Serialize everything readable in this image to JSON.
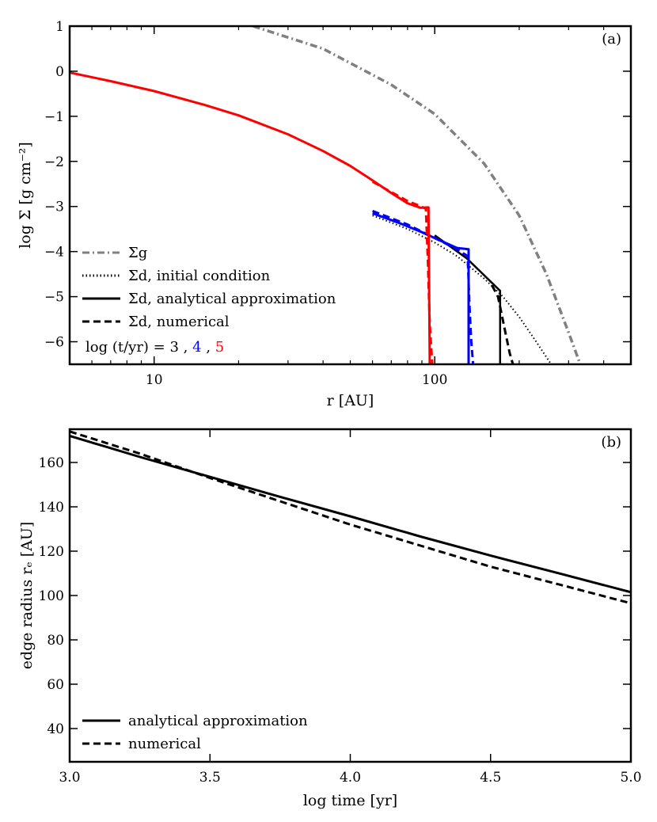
{
  "chart_data": [
    {
      "type": "line",
      "panel_label": "(a)",
      "xlabel": "r [AU]",
      "ylabel": "log Σ [g cm⁻²]",
      "xscale": "log",
      "xlim": [
        5,
        500
      ],
      "ylim": [
        -6.5,
        1
      ],
      "xticks": [
        10,
        100
      ],
      "xtick_labels": [
        "10",
        "100"
      ],
      "yticks": [
        1,
        0,
        -1,
        -2,
        -3,
        -4,
        -5,
        -6
      ],
      "ytick_labels": [
        "1",
        "0",
        "−1",
        "−2",
        "−3",
        "−4",
        "−5",
        "−6"
      ],
      "grid": false,
      "legend_position": "bottom-left",
      "legend": [
        {
          "label": "Σg",
          "style": "dashdot",
          "color": "#808080"
        },
        {
          "label": "Σd, initial condition",
          "style": "dotted",
          "color": "#000000"
        },
        {
          "label": "Σd, analytical approximation",
          "style": "solid",
          "color": "#000000"
        },
        {
          "label": "Σd, numerical",
          "style": "dashed",
          "color": "#000000"
        }
      ],
      "time_annotation": {
        "prefix": "log (t/yr) =",
        "items": [
          {
            "text": "3",
            "color": "#000000"
          },
          {
            "text": ",",
            "color": "#000000"
          },
          {
            "text": "4",
            "color": "#0000ff"
          },
          {
            "text": ",",
            "color": "#000000"
          },
          {
            "text": "5",
            "color": "#ff0000"
          }
        ]
      },
      "series": [
        {
          "name": "Σg",
          "style": "dashdot",
          "color": "#808080",
          "width": 3.5,
          "x": [
            22.5,
            40,
            70,
            100,
            150,
            200,
            250,
            300,
            330
          ],
          "y": [
            1.0,
            0.5,
            -0.3,
            -0.95,
            -2.05,
            -3.2,
            -4.5,
            -5.8,
            -6.5
          ]
        },
        {
          "name": "Σd, initial condition",
          "style": "dotted",
          "color": "#000000",
          "width": 2,
          "x": [
            60,
            80,
            100,
            120,
            150,
            175,
            200,
            230,
            260
          ],
          "y": [
            -3.2,
            -3.5,
            -3.8,
            -4.1,
            -4.6,
            -5.0,
            -5.45,
            -6.0,
            -6.5
          ]
        },
        {
          "name": "t = 10^3, analytical approximation",
          "style": "solid",
          "color": "#000000",
          "width": 2.5,
          "x": [
            100,
            130,
            171,
            171,
            171
          ],
          "y": [
            -3.64,
            -4.15,
            -4.87,
            -4.87,
            -6.5
          ]
        },
        {
          "name": "t = 10^3, numerical",
          "style": "dashed",
          "color": "#000000",
          "width": 3,
          "x": [
            160,
            168,
            172,
            176,
            180,
            185,
            190
          ],
          "y": [
            -4.75,
            -5.0,
            -5.3,
            -5.6,
            -5.9,
            -6.25,
            -6.5
          ]
        },
        {
          "name": "t = 10^4, analytical approximation",
          "style": "solid",
          "color": "#0000ff",
          "width": 3,
          "x": [
            60,
            75,
            90,
            105,
            120,
            132,
            132,
            133
          ],
          "y": [
            -3.15,
            -3.37,
            -3.57,
            -3.76,
            -3.92,
            -3.95,
            -6.5,
            -6.5
          ]
        },
        {
          "name": "t = 10^4, numerical",
          "style": "dashed",
          "color": "#0000ff",
          "width": 3,
          "x": [
            60,
            80,
            100,
            120,
            131,
            133,
            135,
            137
          ],
          "y": [
            -3.1,
            -3.4,
            -3.7,
            -3.95,
            -4.1,
            -5.2,
            -6.0,
            -6.5
          ]
        },
        {
          "name": "t = 10^5, analytical approximation",
          "style": "solid",
          "color": "#ff0000",
          "width": 3,
          "x": [
            5,
            7,
            10,
            15,
            20,
            30,
            40,
            50,
            60,
            70,
            80,
            89,
            95,
            96,
            97
          ],
          "y": [
            -0.03,
            -0.22,
            -0.44,
            -0.74,
            -0.98,
            -1.4,
            -1.77,
            -2.1,
            -2.42,
            -2.7,
            -2.93,
            -3.03,
            -3.02,
            -6.5,
            -6.5
          ]
        },
        {
          "name": "t = 10^5, numerical",
          "style": "dashed",
          "color": "#ff0000",
          "width": 3,
          "x": [
            60,
            70,
            80,
            88,
            93,
            94.5,
            96,
            98
          ],
          "y": [
            -2.45,
            -2.68,
            -2.88,
            -2.98,
            -3.05,
            -4.2,
            -5.6,
            -6.5
          ]
        }
      ]
    },
    {
      "type": "line",
      "panel_label": "(b)",
      "xlabel": "log time [yr]",
      "ylabel": "edge radius rₑ [AU]",
      "xlim": [
        3.0,
        5.0
      ],
      "ylim": [
        25,
        175
      ],
      "xticks": [
        3.0,
        3.5,
        4.0,
        4.5,
        5.0
      ],
      "xtick_labels": [
        "3.0",
        "3.5",
        "4.0",
        "4.5",
        "5.0"
      ],
      "yticks": [
        40,
        60,
        80,
        100,
        120,
        140,
        160
      ],
      "ytick_labels": [
        "40",
        "60",
        "80",
        "100",
        "120",
        "140",
        "160"
      ],
      "grid": false,
      "legend_position": "bottom-left",
      "legend": [
        {
          "label": "analytical approximation",
          "style": "solid",
          "color": "#000000"
        },
        {
          "label": "numerical",
          "style": "dashed",
          "color": "#000000"
        }
      ],
      "series": [
        {
          "name": "analytical approximation",
          "style": "solid",
          "color": "#000000",
          "width": 3,
          "x": [
            3.0,
            3.25,
            3.5,
            3.75,
            4.0,
            4.25,
            4.5,
            4.75,
            5.0
          ],
          "y": [
            172,
            162.5,
            153.5,
            144.5,
            135.7,
            126.6,
            118,
            109.8,
            101.5
          ]
        },
        {
          "name": "numerical",
          "style": "dashed",
          "color": "#000000",
          "width": 3,
          "x": [
            3.0,
            3.25,
            3.5,
            3.75,
            4.0,
            4.25,
            4.5,
            4.75,
            5.0
          ],
          "y": [
            174,
            164,
            153,
            142.5,
            132,
            122.5,
            113,
            104.8,
            96.5
          ]
        }
      ]
    }
  ]
}
